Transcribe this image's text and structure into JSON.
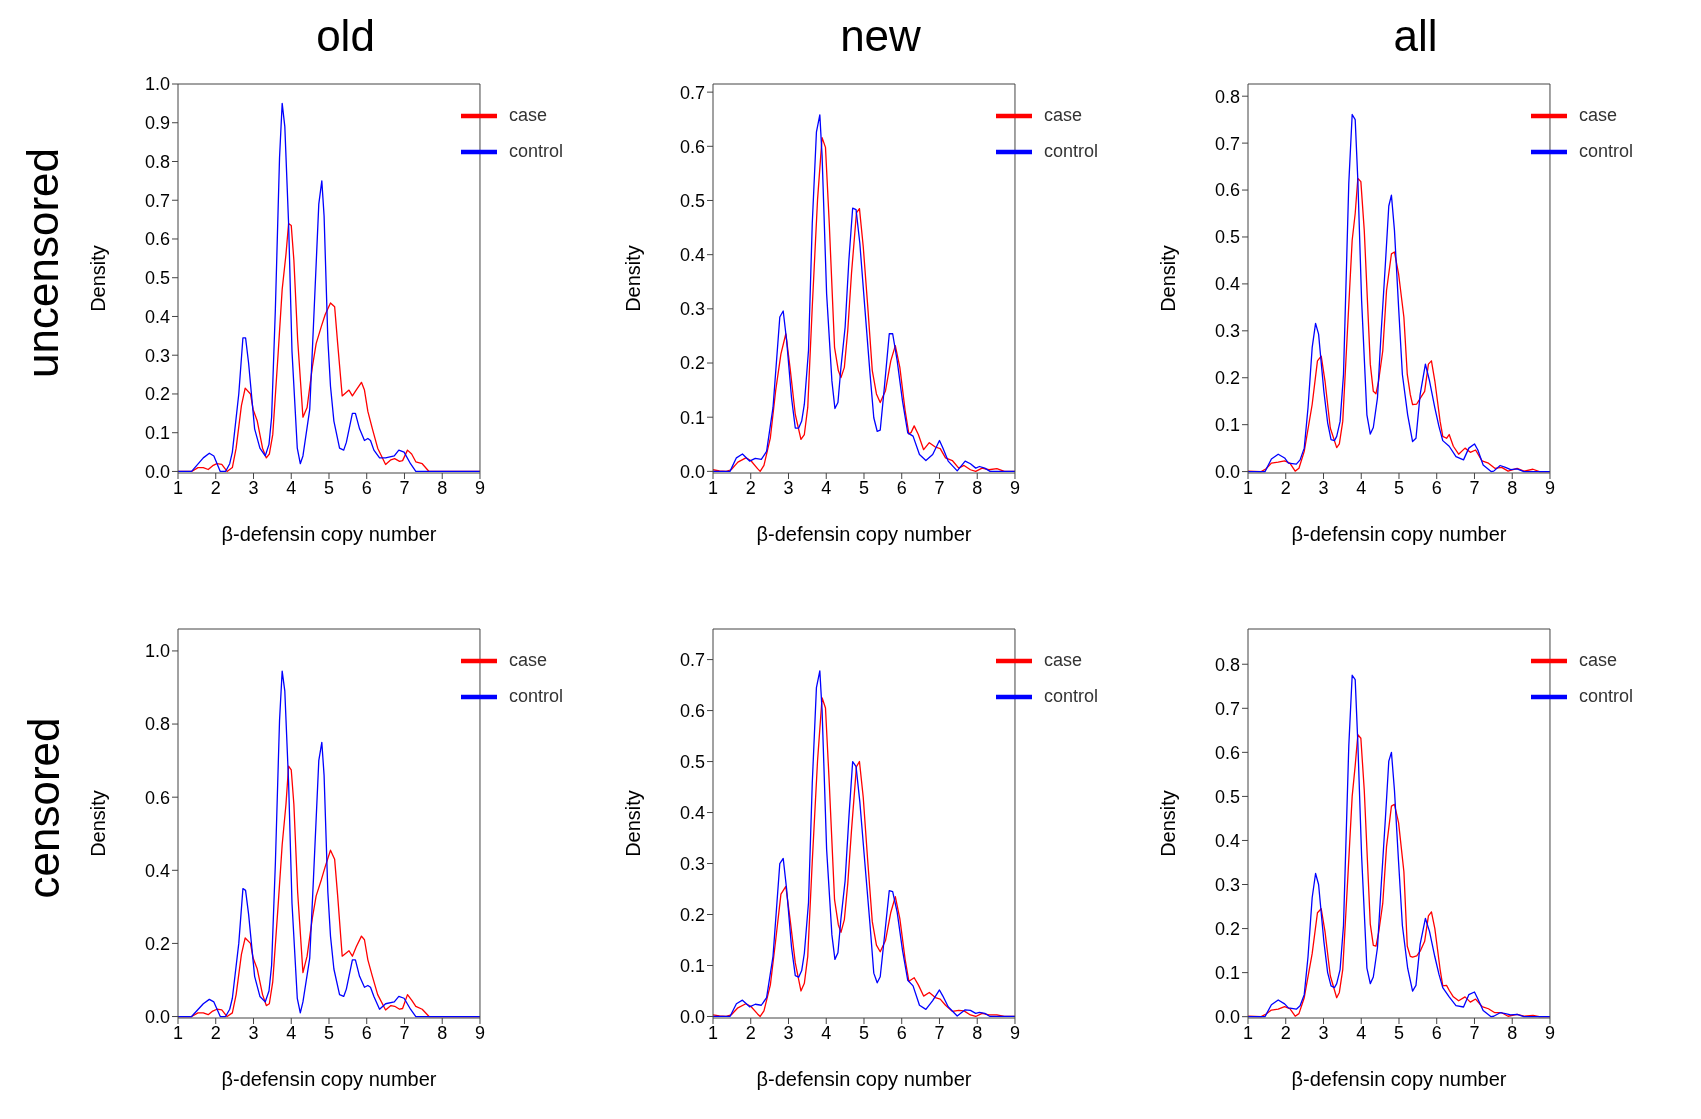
{
  "chart_data": [
    {
      "type": "line",
      "title": "old",
      "annotations": [
        "uncensored"
      ],
      "xlabel": "β-defensin copy number",
      "ylabel": "Density",
      "xlim": [
        1,
        9
      ],
      "xticks": [
        1,
        2,
        3,
        4,
        5,
        6,
        7,
        8,
        9
      ],
      "ylim": [
        -0.004,
        1
      ],
      "yticks": [
        {
          "value": 0,
          "label": "0.0"
        },
        {
          "value": 0.1,
          "label": "0.1"
        },
        {
          "value": 0.2,
          "label": "0.2"
        },
        {
          "value": 0.3,
          "label": "0.3"
        },
        {
          "value": 0.4,
          "label": "0.4"
        },
        {
          "value": 0.5,
          "label": "0.5"
        },
        {
          "value": 0.6,
          "label": "0.6"
        },
        {
          "value": 0.7,
          "label": "0.7"
        },
        {
          "value": 0.8,
          "label": "0.8"
        },
        {
          "value": 0.9,
          "label": "0.9"
        },
        {
          "value": 1,
          "label": "1.0"
        }
      ],
      "legend": "top right",
      "series": [
        {
          "name": "case",
          "color": "#ff0000",
          "x": [
            1,
            1.36,
            1.53,
            1.67,
            1.8,
            1.92,
            2.03,
            2.16,
            2.3,
            2.44,
            2.54,
            2.68,
            2.78,
            2.92,
            2.99,
            3.1,
            3.24,
            3.34,
            3.42,
            3.51,
            3.65,
            3.76,
            3.86,
            3.93,
            4.0,
            4.07,
            4.17,
            4.31,
            4.42,
            4.56,
            4.66,
            4.8,
            4.9,
            5.04,
            5.15,
            5.23,
            5.35,
            5.53,
            5.62,
            5.72,
            5.86,
            5.94,
            6.03,
            6.15,
            6.29,
            6.5,
            6.64,
            6.74,
            6.87,
            6.95,
            7.08,
            7.19,
            7.3,
            7.47,
            7.65,
            9
          ],
          "values": [
            0,
            0,
            0.01,
            0.01,
            0.005,
            0.015,
            0.02,
            0.018,
            0,
            0.01,
            0.06,
            0.17,
            0.215,
            0.2,
            0.16,
            0.13,
            0.06,
            0.035,
            0.045,
            0.095,
            0.3,
            0.47,
            0.56,
            0.64,
            0.635,
            0.545,
            0.34,
            0.14,
            0.165,
            0.27,
            0.33,
            0.375,
            0.405,
            0.435,
            0.425,
            0.33,
            0.195,
            0.21,
            0.195,
            0.21,
            0.23,
            0.21,
            0.155,
            0.11,
            0.06,
            0.018,
            0.03,
            0.033,
            0.026,
            0.028,
            0.055,
            0.045,
            0.025,
            0.02,
            0,
            0
          ]
        },
        {
          "name": "control",
          "color": "#0000ff",
          "x": [
            1,
            1.36,
            1.67,
            1.83,
            1.95,
            2.12,
            2.26,
            2.37,
            2.44,
            2.61,
            2.72,
            2.79,
            2.87,
            3.03,
            3.17,
            3.31,
            3.41,
            3.48,
            3.58,
            3.69,
            3.76,
            3.83,
            3.93,
            4.02,
            4.16,
            4.24,
            4.31,
            4.49,
            4.59,
            4.73,
            4.81,
            4.87,
            4.97,
            5.04,
            5.13,
            5.28,
            5.39,
            5.46,
            5.62,
            5.7,
            5.81,
            5.94,
            6.03,
            6.1,
            6.19,
            6.34,
            6.5,
            6.73,
            6.85,
            6.99,
            7.16,
            7.3,
            9
          ],
          "values": [
            0,
            0,
            0.035,
            0.047,
            0.04,
            0,
            0,
            0.02,
            0.05,
            0.2,
            0.345,
            0.345,
            0.28,
            0.11,
            0.06,
            0.04,
            0.07,
            0.14,
            0.42,
            0.81,
            0.95,
            0.89,
            0.64,
            0.31,
            0.06,
            0.02,
            0.04,
            0.16,
            0.38,
            0.69,
            0.75,
            0.66,
            0.34,
            0.22,
            0.13,
            0.06,
            0.055,
            0.075,
            0.15,
            0.15,
            0.11,
            0.08,
            0.085,
            0.08,
            0.055,
            0.035,
            0.035,
            0.04,
            0.055,
            0.05,
            0.02,
            0,
            0
          ]
        }
      ]
    },
    {
      "type": "line",
      "title": "new",
      "xlabel": "β-defensin copy number",
      "ylabel": "Density",
      "xlim": [
        1,
        9
      ],
      "xticks": [
        1,
        2,
        3,
        4,
        5,
        6,
        7,
        8,
        9
      ],
      "ylim": [
        -0.003,
        0.715
      ],
      "yticks": [
        {
          "value": 0,
          "label": "0.0"
        },
        {
          "value": 0.1,
          "label": "0.1"
        },
        {
          "value": 0.2,
          "label": "0.2"
        },
        {
          "value": 0.3,
          "label": "0.3"
        },
        {
          "value": 0.4,
          "label": "0.4"
        },
        {
          "value": 0.5,
          "label": "0.5"
        },
        {
          "value": 0.6,
          "label": "0.6"
        },
        {
          "value": 0.7,
          "label": "0.7"
        }
      ],
      "legend": "top right",
      "series": [
        {
          "name": "case",
          "color": "#ff0000",
          "x": [
            1,
            1.17,
            1.35,
            1.48,
            1.66,
            1.87,
            2.0,
            2.18,
            2.25,
            2.35,
            2.52,
            2.66,
            2.8,
            2.93,
            3.04,
            3.18,
            3.33,
            3.42,
            3.51,
            3.63,
            3.77,
            3.89,
            3.98,
            4.08,
            4.22,
            4.32,
            4.39,
            4.48,
            4.57,
            4.67,
            4.8,
            4.88,
            4.98,
            5.1,
            5.22,
            5.33,
            5.43,
            5.57,
            5.71,
            5.83,
            5.95,
            6.09,
            6.19,
            6.25,
            6.33,
            6.44,
            6.58,
            6.73,
            6.89,
            7.02,
            7.16,
            7.34,
            7.51,
            7.65,
            7.82,
            7.96,
            8.13,
            8.31,
            8.52,
            8.72,
            9
          ],
          "values": [
            0.003,
            0.001,
            0,
            0.003,
            0.017,
            0.025,
            0.02,
            0.005,
            0,
            0.011,
            0.062,
            0.149,
            0.217,
            0.254,
            0.192,
            0.105,
            0.059,
            0.068,
            0.118,
            0.304,
            0.502,
            0.616,
            0.598,
            0.458,
            0.229,
            0.186,
            0.173,
            0.192,
            0.26,
            0.366,
            0.477,
            0.485,
            0.415,
            0.304,
            0.186,
            0.143,
            0.127,
            0.149,
            0.204,
            0.232,
            0.192,
            0.112,
            0.069,
            0.072,
            0.084,
            0.068,
            0.04,
            0.053,
            0.045,
            0.042,
            0.025,
            0.02,
            0.006,
            0.011,
            0.003,
            0,
            0.006,
            0.003,
            0.005,
            0,
            0
          ]
        },
        {
          "name": "control",
          "color": "#0000ff",
          "x": [
            1,
            1.45,
            1.62,
            1.78,
            1.97,
            2.12,
            2.28,
            2.42,
            2.59,
            2.77,
            2.86,
            2.95,
            3.08,
            3.18,
            3.27,
            3.35,
            3.42,
            3.53,
            3.63,
            3.74,
            3.83,
            3.89,
            4.01,
            4.15,
            4.23,
            4.31,
            4.39,
            4.5,
            4.6,
            4.7,
            4.79,
            4.89,
            5.02,
            5.16,
            5.26,
            5.35,
            5.43,
            5.54,
            5.67,
            5.76,
            5.88,
            6.02,
            6.16,
            6.3,
            6.47,
            6.64,
            6.82,
            7.0,
            7.09,
            7.23,
            7.47,
            7.68,
            7.82,
            7.96,
            8.06,
            8.2,
            8.34,
            9
          ],
          "values": [
            0,
            0,
            0.025,
            0.032,
            0.019,
            0.024,
            0.022,
            0.037,
            0.118,
            0.285,
            0.296,
            0.242,
            0.136,
            0.08,
            0.08,
            0.093,
            0.124,
            0.223,
            0.458,
            0.626,
            0.658,
            0.582,
            0.328,
            0.167,
            0.116,
            0.127,
            0.192,
            0.266,
            0.39,
            0.486,
            0.483,
            0.421,
            0.304,
            0.18,
            0.099,
            0.074,
            0.076,
            0.155,
            0.254,
            0.254,
            0.204,
            0.13,
            0.071,
            0.065,
            0.031,
            0.02,
            0.031,
            0.057,
            0.043,
            0.019,
            0.001,
            0.019,
            0.014,
            0.006,
            0.009,
            0.006,
            0,
            0
          ]
        }
      ]
    },
    {
      "type": "line",
      "title": "all",
      "xlabel": "β-defensin copy number",
      "ylabel": "Density",
      "xlim": [
        1,
        9
      ],
      "xticks": [
        1,
        2,
        3,
        4,
        5,
        6,
        7,
        8,
        9
      ],
      "ylim": [
        -0.003,
        0.826
      ],
      "yticks": [
        {
          "value": 0,
          "label": "0.0"
        },
        {
          "value": 0.1,
          "label": "0.1"
        },
        {
          "value": 0.2,
          "label": "0.2"
        },
        {
          "value": 0.3,
          "label": "0.3"
        },
        {
          "value": 0.4,
          "label": "0.4"
        },
        {
          "value": 0.5,
          "label": "0.5"
        },
        {
          "value": 0.6,
          "label": "0.6"
        },
        {
          "value": 0.7,
          "label": "0.7"
        },
        {
          "value": 0.8,
          "label": "0.8"
        }
      ],
      "legend": "top right",
      "series": [
        {
          "name": "case",
          "color": "#ff0000",
          "x": [
            1,
            1.35,
            1.48,
            1.62,
            1.8,
            1.97,
            2.11,
            2.25,
            2.35,
            2.49,
            2.7,
            2.84,
            2.94,
            3.04,
            3.18,
            3.35,
            3.42,
            3.51,
            3.63,
            3.76,
            3.84,
            3.91,
            3.99,
            4.08,
            4.24,
            4.32,
            4.39,
            4.46,
            4.57,
            4.67,
            4.8,
            4.88,
            4.99,
            5.13,
            5.22,
            5.3,
            5.36,
            5.47,
            5.57,
            5.68,
            5.78,
            5.86,
            5.95,
            6.09,
            6.16,
            6.26,
            6.33,
            6.44,
            6.58,
            6.75,
            6.89,
            7.03,
            7.2,
            7.37,
            7.54,
            7.72,
            7.89,
            8.13,
            8.31,
            8.55,
            8.72,
            9
          ],
          "values": [
            0.001,
            0,
            0.006,
            0.018,
            0.02,
            0.023,
            0.018,
            0.001,
            0.007,
            0.043,
            0.143,
            0.236,
            0.246,
            0.193,
            0.093,
            0.051,
            0.059,
            0.107,
            0.293,
            0.493,
            0.55,
            0.625,
            0.618,
            0.514,
            0.229,
            0.171,
            0.166,
            0.193,
            0.257,
            0.386,
            0.464,
            0.468,
            0.421,
            0.329,
            0.207,
            0.164,
            0.143,
            0.144,
            0.157,
            0.171,
            0.229,
            0.236,
            0.193,
            0.107,
            0.075,
            0.071,
            0.079,
            0.054,
            0.037,
            0.05,
            0.041,
            0.046,
            0.023,
            0.018,
            0.007,
            0.009,
            0.001,
            0.007,
            0.001,
            0.005,
            0,
            0
          ]
        },
        {
          "name": "control",
          "color": "#0000ff",
          "x": [
            1,
            1.45,
            1.62,
            1.8,
            1.97,
            2.07,
            2.28,
            2.38,
            2.49,
            2.59,
            2.7,
            2.79,
            2.87,
            3.01,
            3.11,
            3.2,
            3.29,
            3.35,
            3.44,
            3.53,
            3.67,
            3.76,
            3.84,
            3.91,
            4.01,
            4.15,
            4.24,
            4.32,
            4.43,
            4.53,
            4.64,
            4.73,
            4.8,
            4.88,
            4.99,
            5.09,
            5.23,
            5.36,
            5.45,
            5.56,
            5.7,
            5.81,
            5.95,
            6.06,
            6.16,
            6.33,
            6.51,
            6.71,
            6.85,
            7.0,
            7.09,
            7.23,
            7.44,
            7.51,
            7.68,
            7.82,
            7.96,
            8.13,
            8.31,
            9
          ],
          "values": [
            0,
            0,
            0.027,
            0.037,
            0.029,
            0.018,
            0.016,
            0.025,
            0.05,
            0.136,
            0.264,
            0.316,
            0.293,
            0.171,
            0.104,
            0.068,
            0.066,
            0.075,
            0.107,
            0.207,
            0.614,
            0.761,
            0.75,
            0.621,
            0.364,
            0.121,
            0.08,
            0.094,
            0.157,
            0.3,
            0.443,
            0.566,
            0.589,
            0.514,
            0.35,
            0.207,
            0.121,
            0.064,
            0.071,
            0.164,
            0.229,
            0.193,
            0.136,
            0.096,
            0.066,
            0.054,
            0.032,
            0.025,
            0.05,
            0.059,
            0.046,
            0.014,
            0,
            0.001,
            0.013,
            0.009,
            0.004,
            0.006,
            0,
            0
          ]
        }
      ]
    },
    {
      "type": "line",
      "annotations": [
        "censored"
      ],
      "xlabel": "β-defensin copy number",
      "ylabel": "Density",
      "xlim": [
        1,
        9
      ],
      "xticks": [
        1,
        2,
        3,
        4,
        5,
        6,
        7,
        8,
        9
      ],
      "ylim": [
        -0.004,
        1.06
      ],
      "yticks": [
        {
          "value": 0,
          "label": "0.0"
        },
        {
          "value": 0.2,
          "label": "0.2"
        },
        {
          "value": 0.4,
          "label": "0.4"
        },
        {
          "value": 0.6,
          "label": "0.6"
        },
        {
          "value": 0.8,
          "label": "0.8"
        },
        {
          "value": 1,
          "label": "1.0"
        }
      ],
      "legend": "top right",
      "series": [
        {
          "name": "case",
          "color": "#ff0000",
          "x": [
            1,
            1.36,
            1.53,
            1.67,
            1.8,
            1.92,
            2.03,
            2.16,
            2.3,
            2.44,
            2.54,
            2.68,
            2.78,
            2.92,
            2.99,
            3.1,
            3.24,
            3.34,
            3.42,
            3.51,
            3.65,
            3.76,
            3.86,
            3.93,
            4.0,
            4.07,
            4.17,
            4.31,
            4.42,
            4.56,
            4.66,
            4.8,
            4.9,
            5.04,
            5.15,
            5.23,
            5.35,
            5.53,
            5.62,
            5.72,
            5.86,
            5.94,
            6.03,
            6.15,
            6.29,
            6.5,
            6.64,
            6.74,
            6.87,
            6.95,
            7.08,
            7.19,
            7.3,
            7.47,
            7.65,
            9
          ],
          "values": [
            0,
            0,
            0.01,
            0.01,
            0.005,
            0.015,
            0.02,
            0.018,
            0,
            0.01,
            0.06,
            0.17,
            0.215,
            0.2,
            0.16,
            0.13,
            0.06,
            0.03,
            0.035,
            0.095,
            0.3,
            0.47,
            0.58,
            0.685,
            0.675,
            0.58,
            0.34,
            0.12,
            0.165,
            0.27,
            0.33,
            0.375,
            0.41,
            0.455,
            0.43,
            0.33,
            0.165,
            0.18,
            0.165,
            0.19,
            0.22,
            0.21,
            0.155,
            0.11,
            0.06,
            0.018,
            0.03,
            0.028,
            0.02,
            0.022,
            0.06,
            0.045,
            0.028,
            0.02,
            0,
            0
          ]
        },
        {
          "name": "control",
          "color": "#0000ff",
          "x": [
            1,
            1.36,
            1.67,
            1.83,
            1.95,
            2.12,
            2.26,
            2.37,
            2.44,
            2.61,
            2.72,
            2.79,
            2.87,
            3.03,
            3.17,
            3.31,
            3.41,
            3.48,
            3.58,
            3.69,
            3.76,
            3.83,
            3.93,
            4.02,
            4.16,
            4.24,
            4.31,
            4.49,
            4.59,
            4.73,
            4.81,
            4.87,
            4.97,
            5.04,
            5.13,
            5.28,
            5.39,
            5.46,
            5.62,
            5.7,
            5.81,
            5.94,
            6.03,
            6.1,
            6.19,
            6.34,
            6.5,
            6.73,
            6.85,
            6.99,
            7.16,
            7.3,
            9
          ],
          "values": [
            0,
            0,
            0.035,
            0.047,
            0.04,
            0,
            0,
            0.02,
            0.05,
            0.2,
            0.35,
            0.345,
            0.28,
            0.11,
            0.055,
            0.04,
            0.07,
            0.14,
            0.42,
            0.81,
            0.945,
            0.89,
            0.64,
            0.31,
            0.05,
            0.01,
            0.04,
            0.16,
            0.38,
            0.7,
            0.75,
            0.66,
            0.34,
            0.22,
            0.13,
            0.06,
            0.055,
            0.075,
            0.155,
            0.155,
            0.11,
            0.08,
            0.085,
            0.08,
            0.055,
            0.02,
            0.035,
            0.04,
            0.055,
            0.05,
            0.02,
            0,
            0
          ]
        }
      ]
    },
    {
      "type": "line",
      "xlabel": "β-defensin copy number",
      "ylabel": "Density",
      "xlim": [
        1,
        9
      ],
      "xticks": [
        1,
        2,
        3,
        4,
        5,
        6,
        7,
        8,
        9
      ],
      "ylim": [
        -0.003,
        0.76
      ],
      "yticks": [
        {
          "value": 0,
          "label": "0.0"
        },
        {
          "value": 0.1,
          "label": "0.1"
        },
        {
          "value": 0.2,
          "label": "0.2"
        },
        {
          "value": 0.3,
          "label": "0.3"
        },
        {
          "value": 0.4,
          "label": "0.4"
        },
        {
          "value": 0.5,
          "label": "0.5"
        },
        {
          "value": 0.6,
          "label": "0.6"
        },
        {
          "value": 0.7,
          "label": "0.7"
        }
      ],
      "legend": "top right",
      "series": [
        {
          "name": "case",
          "color": "#ff0000",
          "x": [
            1,
            1.17,
            1.35,
            1.48,
            1.66,
            1.87,
            2.0,
            2.18,
            2.25,
            2.35,
            2.52,
            2.66,
            2.8,
            2.93,
            3.04,
            3.18,
            3.33,
            3.42,
            3.51,
            3.63,
            3.77,
            3.89,
            3.98,
            4.08,
            4.22,
            4.32,
            4.39,
            4.48,
            4.57,
            4.67,
            4.8,
            4.88,
            4.98,
            5.1,
            5.22,
            5.33,
            5.43,
            5.57,
            5.71,
            5.83,
            5.95,
            6.09,
            6.19,
            6.25,
            6.33,
            6.44,
            6.58,
            6.73,
            6.89,
            7.02,
            7.16,
            7.34,
            7.51,
            7.65,
            7.82,
            7.96,
            8.13,
            8.31,
            8.52,
            8.72,
            9
          ],
          "values": [
            0.003,
            0.001,
            0,
            0.003,
            0.017,
            0.025,
            0.02,
            0.005,
            0,
            0.011,
            0.062,
            0.149,
            0.24,
            0.255,
            0.192,
            0.105,
            0.05,
            0.065,
            0.118,
            0.304,
            0.502,
            0.625,
            0.605,
            0.458,
            0.229,
            0.18,
            0.165,
            0.19,
            0.26,
            0.366,
            0.49,
            0.5,
            0.43,
            0.304,
            0.186,
            0.14,
            0.127,
            0.149,
            0.204,
            0.235,
            0.192,
            0.112,
            0.069,
            0.072,
            0.076,
            0.062,
            0.04,
            0.047,
            0.037,
            0.034,
            0.022,
            0.01,
            0.012,
            0.011,
            0.003,
            0,
            0.006,
            0.003,
            0.003,
            0,
            0
          ]
        },
        {
          "name": "control",
          "color": "#0000ff",
          "x": [
            1,
            1.45,
            1.62,
            1.78,
            1.97,
            2.12,
            2.28,
            2.42,
            2.59,
            2.77,
            2.86,
            2.95,
            3.08,
            3.18,
            3.27,
            3.35,
            3.42,
            3.53,
            3.63,
            3.74,
            3.83,
            3.89,
            4.01,
            4.15,
            4.23,
            4.31,
            4.39,
            4.5,
            4.6,
            4.7,
            4.79,
            4.89,
            5.02,
            5.16,
            5.26,
            5.35,
            5.43,
            5.54,
            5.67,
            5.76,
            5.88,
            6.02,
            6.16,
            6.3,
            6.47,
            6.64,
            6.82,
            7.0,
            7.09,
            7.23,
            7.47,
            7.68,
            7.82,
            7.96,
            8.06,
            8.2,
            8.34,
            9
          ],
          "values": [
            0,
            0,
            0.025,
            0.032,
            0.019,
            0.024,
            0.022,
            0.037,
            0.118,
            0.3,
            0.31,
            0.25,
            0.136,
            0.08,
            0.077,
            0.09,
            0.124,
            0.223,
            0.458,
            0.645,
            0.678,
            0.6,
            0.328,
            0.16,
            0.112,
            0.125,
            0.192,
            0.266,
            0.39,
            0.5,
            0.49,
            0.421,
            0.304,
            0.18,
            0.085,
            0.066,
            0.078,
            0.155,
            0.247,
            0.245,
            0.204,
            0.13,
            0.071,
            0.06,
            0.022,
            0.014,
            0.031,
            0.052,
            0.04,
            0.019,
            0.001,
            0.013,
            0.012,
            0.006,
            0.008,
            0.006,
            0,
            0
          ]
        }
      ]
    },
    {
      "type": "line",
      "xlabel": "β-defensin copy number",
      "ylabel": "Density",
      "xlim": [
        1,
        9
      ],
      "xticks": [
        1,
        2,
        3,
        4,
        5,
        6,
        7,
        8,
        9
      ],
      "ylim": [
        -0.003,
        0.88
      ],
      "yticks": [
        {
          "value": 0,
          "label": "0.0"
        },
        {
          "value": 0.1,
          "label": "0.1"
        },
        {
          "value": 0.2,
          "label": "0.2"
        },
        {
          "value": 0.3,
          "label": "0.3"
        },
        {
          "value": 0.4,
          "label": "0.4"
        },
        {
          "value": 0.5,
          "label": "0.5"
        },
        {
          "value": 0.6,
          "label": "0.6"
        },
        {
          "value": 0.7,
          "label": "0.7"
        },
        {
          "value": 0.8,
          "label": "0.8"
        }
      ],
      "legend": "top right",
      "series": [
        {
          "name": "case",
          "color": "#ff0000",
          "x": [
            1,
            1.35,
            1.48,
            1.62,
            1.8,
            1.97,
            2.11,
            2.25,
            2.35,
            2.49,
            2.7,
            2.84,
            2.94,
            3.04,
            3.18,
            3.35,
            3.42,
            3.51,
            3.63,
            3.76,
            3.84,
            3.91,
            3.99,
            4.08,
            4.24,
            4.32,
            4.39,
            4.46,
            4.57,
            4.67,
            4.8,
            4.88,
            4.99,
            5.13,
            5.22,
            5.3,
            5.36,
            5.47,
            5.57,
            5.68,
            5.78,
            5.86,
            5.95,
            6.09,
            6.16,
            6.26,
            6.33,
            6.44,
            6.58,
            6.75,
            6.89,
            7.03,
            7.2,
            7.37,
            7.54,
            7.72,
            7.89,
            8.13,
            8.31,
            8.55,
            8.72,
            9
          ],
          "values": [
            0.001,
            0,
            0.006,
            0.015,
            0.017,
            0.023,
            0.018,
            0.001,
            0.007,
            0.043,
            0.143,
            0.236,
            0.245,
            0.193,
            0.093,
            0.043,
            0.055,
            0.107,
            0.293,
            0.5,
            0.57,
            0.64,
            0.632,
            0.514,
            0.21,
            0.162,
            0.16,
            0.19,
            0.257,
            0.386,
            0.478,
            0.482,
            0.44,
            0.329,
            0.16,
            0.137,
            0.135,
            0.138,
            0.15,
            0.171,
            0.229,
            0.238,
            0.2,
            0.107,
            0.07,
            0.071,
            0.06,
            0.045,
            0.036,
            0.045,
            0.033,
            0.04,
            0.023,
            0.018,
            0.009,
            0.009,
            0.001,
            0.005,
            0.001,
            0.003,
            0,
            0
          ]
        },
        {
          "name": "control",
          "color": "#0000ff",
          "x": [
            1,
            1.45,
            1.62,
            1.8,
            1.97,
            2.07,
            2.28,
            2.38,
            2.49,
            2.59,
            2.7,
            2.79,
            2.87,
            3.01,
            3.11,
            3.2,
            3.29,
            3.35,
            3.44,
            3.53,
            3.67,
            3.76,
            3.84,
            3.91,
            4.01,
            4.15,
            4.24,
            4.32,
            4.43,
            4.53,
            4.64,
            4.73,
            4.8,
            4.88,
            4.99,
            5.09,
            5.23,
            5.36,
            5.45,
            5.56,
            5.7,
            5.81,
            5.95,
            6.06,
            6.16,
            6.33,
            6.51,
            6.71,
            6.85,
            7.0,
            7.09,
            7.23,
            7.44,
            7.51,
            7.68,
            7.82,
            7.96,
            8.13,
            8.31,
            9
          ],
          "values": [
            0,
            0,
            0.027,
            0.038,
            0.029,
            0.02,
            0.017,
            0.025,
            0.05,
            0.136,
            0.27,
            0.325,
            0.3,
            0.171,
            0.1,
            0.07,
            0.066,
            0.075,
            0.107,
            0.207,
            0.614,
            0.775,
            0.765,
            0.621,
            0.364,
            0.11,
            0.075,
            0.09,
            0.157,
            0.3,
            0.45,
            0.58,
            0.6,
            0.514,
            0.35,
            0.207,
            0.11,
            0.058,
            0.071,
            0.164,
            0.223,
            0.193,
            0.136,
            0.096,
            0.066,
            0.045,
            0.025,
            0.022,
            0.05,
            0.056,
            0.04,
            0.014,
            0,
            0.001,
            0.009,
            0.007,
            0.004,
            0.005,
            0,
            0
          ]
        }
      ]
    }
  ]
}
